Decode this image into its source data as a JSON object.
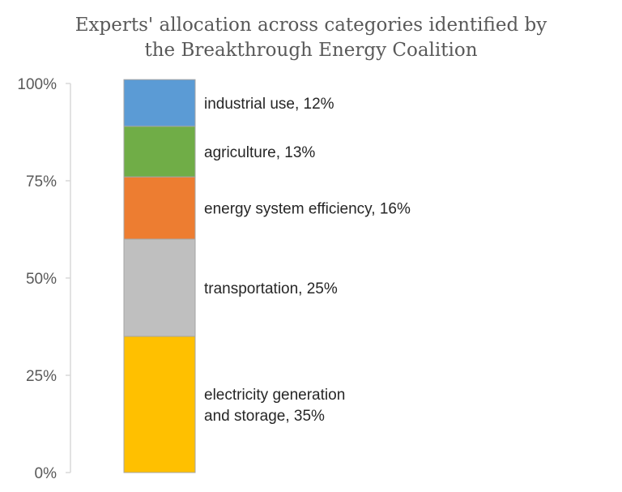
{
  "chart_data": {
    "type": "bar",
    "stacked": true,
    "title_lines": [
      "Experts' allocation across categories identified by",
      "the Breakthrough Energy Coalition"
    ],
    "ylim": [
      0,
      100
    ],
    "y_ticks": [
      "0%",
      "25%",
      "50%",
      "75%",
      "100%"
    ],
    "legend": "none",
    "grid": false,
    "series": [
      {
        "name": "electricity generation and storage",
        "value": 35,
        "color": "#FFC000",
        "label_lines": [
          "electricity generation",
          "and storage, 35%"
        ]
      },
      {
        "name": "transportation",
        "value": 25,
        "color": "#BFBFBF",
        "label_lines": [
          "transportation, 25%"
        ]
      },
      {
        "name": "energy system efficiency",
        "value": 16,
        "color": "#ED7D31",
        "label_lines": [
          "energy system efficiency, 16%"
        ]
      },
      {
        "name": "agriculture",
        "value": 13,
        "color": "#70AD47",
        "label_lines": [
          "agriculture, 13%"
        ]
      },
      {
        "name": "industrial use",
        "value": 12,
        "color": "#5B9BD5",
        "label_lines": [
          "industrial use, 12%"
        ]
      }
    ]
  }
}
